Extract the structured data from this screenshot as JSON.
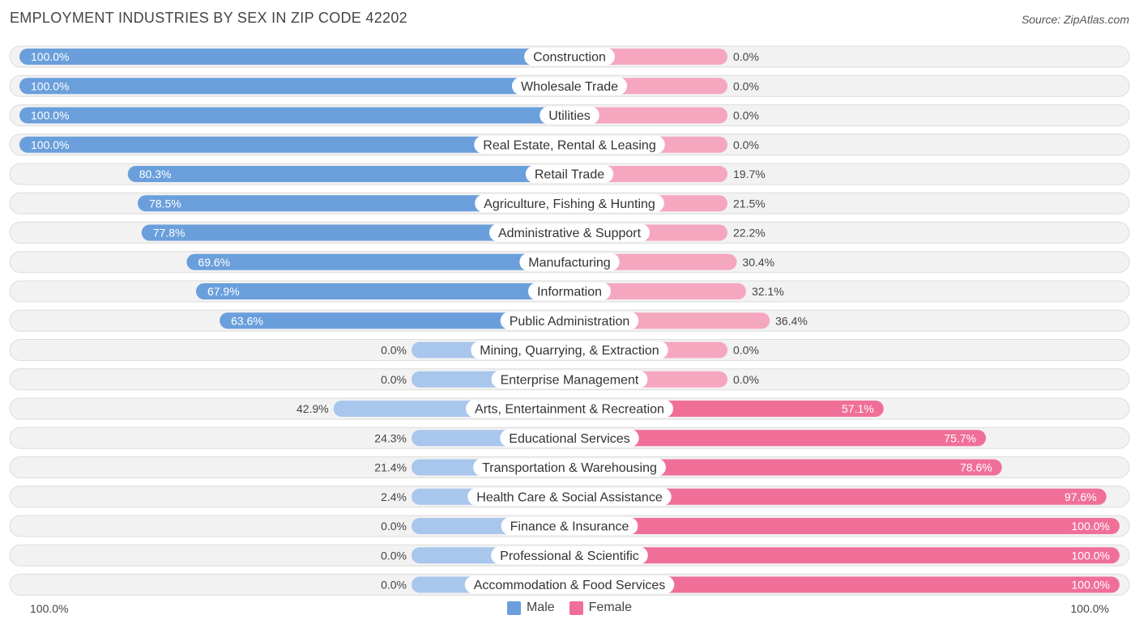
{
  "title": "EMPLOYMENT INDUSTRIES BY SEX IN ZIP CODE 42202",
  "source": "Source: ZipAtlas.com",
  "colors": {
    "male_strong": "#6a9fdc",
    "male_light": "#a9c6ec",
    "female_strong": "#f06f98",
    "female_light": "#f6a7c0",
    "row_bg": "#f2f2f2",
    "row_border": "#dcdcdc"
  },
  "axis": {
    "left_label": "100.0%",
    "right_label": "100.0%"
  },
  "legend": {
    "male_label": "Male",
    "female_label": "Female"
  },
  "chart_data": {
    "type": "bar",
    "orientation": "horizontal-diverging",
    "title": "EMPLOYMENT INDUSTRIES BY SEX IN ZIP CODE 42202",
    "xlim": [
      -100,
      100
    ],
    "categories": [
      "Construction",
      "Wholesale Trade",
      "Utilities",
      "Real Estate, Rental & Leasing",
      "Retail Trade",
      "Agriculture, Fishing & Hunting",
      "Administrative & Support",
      "Manufacturing",
      "Information",
      "Public Administration",
      "Mining, Quarrying, & Extraction",
      "Enterprise Management",
      "Arts, Entertainment & Recreation",
      "Educational Services",
      "Transportation & Warehousing",
      "Health Care & Social Assistance",
      "Finance & Insurance",
      "Professional & Scientific",
      "Accommodation & Food Services"
    ],
    "series": [
      {
        "name": "Male",
        "values": [
          100.0,
          100.0,
          100.0,
          100.0,
          80.3,
          78.5,
          77.8,
          69.6,
          67.9,
          63.6,
          0.0,
          0.0,
          42.9,
          24.3,
          21.4,
          2.4,
          0.0,
          0.0,
          0.0
        ],
        "labels": [
          "100.0%",
          "100.0%",
          "100.0%",
          "100.0%",
          "80.3%",
          "78.5%",
          "77.8%",
          "69.6%",
          "67.9%",
          "63.6%",
          "0.0%",
          "0.0%",
          "42.9%",
          "24.3%",
          "21.4%",
          "2.4%",
          "0.0%",
          "0.0%",
          "0.0%"
        ]
      },
      {
        "name": "Female",
        "values": [
          0.0,
          0.0,
          0.0,
          0.0,
          19.7,
          21.5,
          22.2,
          30.4,
          32.1,
          36.4,
          0.0,
          0.0,
          57.1,
          75.7,
          78.6,
          97.6,
          100.0,
          100.0,
          100.0
        ],
        "labels": [
          "0.0%",
          "0.0%",
          "0.0%",
          "0.0%",
          "19.7%",
          "21.5%",
          "22.2%",
          "30.4%",
          "32.1%",
          "36.4%",
          "0.0%",
          "0.0%",
          "57.1%",
          "75.7%",
          "78.6%",
          "97.6%",
          "100.0%",
          "100.0%",
          "100.0%"
        ]
      }
    ]
  }
}
